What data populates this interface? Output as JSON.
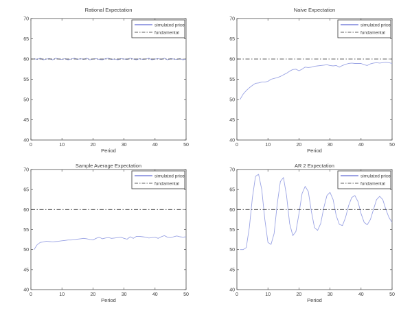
{
  "figure": {
    "background": "#ffffff",
    "axis_color": "#4a4a4a",
    "text_color": "#3d3d3d",
    "curve_color": "#9aa3e4",
    "legend_curve_color": "#3a45c8",
    "fundamental_color": "#2b2b2b"
  },
  "chart_data": [
    {
      "type": "line",
      "title": "Rational Expectation",
      "xlabel": "Period",
      "ylabel": "",
      "xlim": [
        0,
        50
      ],
      "ylim": [
        40,
        70
      ],
      "xticks": [
        0,
        10,
        20,
        30,
        40,
        50
      ],
      "yticks": [
        40,
        45,
        50,
        55,
        60,
        65,
        70
      ],
      "grid": false,
      "legend": [
        "simulated price",
        "fundamental"
      ],
      "legend_position": "upper right",
      "series": [
        {
          "name": "simulated price",
          "style": "solid",
          "x": [
            1,
            2,
            3,
            4,
            5,
            6,
            7,
            8,
            9,
            10,
            11,
            12,
            13,
            14,
            15,
            16,
            17,
            18,
            19,
            20,
            21,
            22,
            23,
            24,
            25,
            26,
            27,
            28,
            29,
            30,
            31,
            32,
            33,
            34,
            35,
            36,
            37,
            38,
            39,
            40,
            41,
            42,
            43,
            44,
            45,
            46,
            47,
            48,
            49,
            50
          ],
          "y": [
            60.1,
            59.9,
            60.2,
            59.8,
            60.0,
            60.1,
            59.8,
            60.2,
            60.0,
            59.9,
            60.1,
            59.8,
            60.0,
            60.2,
            59.9,
            60.1,
            59.9,
            60.2,
            59.8,
            60.0,
            60.1,
            59.9,
            59.8,
            60.1,
            60.2,
            59.9,
            60.0,
            59.8,
            60.1,
            60.0,
            59.9,
            60.2,
            60.0,
            59.8,
            60.1,
            59.9,
            60.0,
            60.2,
            59.8,
            60.0,
            60.1,
            59.9,
            60.2,
            59.8,
            60.1,
            60.0,
            59.9,
            60.1,
            59.8,
            60.0
          ]
        },
        {
          "name": "fundamental",
          "style": "dashdot",
          "constant": 60
        }
      ]
    },
    {
      "type": "line",
      "title": "Naive Expectation",
      "xlabel": "Period",
      "ylabel": "",
      "xlim": [
        0,
        50
      ],
      "ylim": [
        40,
        70
      ],
      "xticks": [
        0,
        10,
        20,
        30,
        40,
        50
      ],
      "yticks": [
        40,
        45,
        50,
        55,
        60,
        65,
        70
      ],
      "grid": false,
      "legend": [
        "simulated price",
        "fundamental"
      ],
      "legend_position": "upper right",
      "series": [
        {
          "name": "simulated price",
          "style": "solid",
          "x": [
            1,
            2,
            3,
            4,
            5,
            6,
            7,
            8,
            9,
            10,
            11,
            12,
            13,
            14,
            15,
            16,
            17,
            18,
            19,
            20,
            21,
            22,
            23,
            24,
            25,
            26,
            27,
            28,
            29,
            30,
            31,
            32,
            33,
            34,
            35,
            36,
            37,
            38,
            39,
            40,
            41,
            42,
            43,
            44,
            45,
            46,
            47,
            48,
            49,
            50
          ],
          "y": [
            50.0,
            51.3,
            52.2,
            52.9,
            53.5,
            54.0,
            54.1,
            54.3,
            54.3,
            54.5,
            55.0,
            55.2,
            55.4,
            55.7,
            56.1,
            56.5,
            57.0,
            57.4,
            57.5,
            57.1,
            57.5,
            58.0,
            57.9,
            58.0,
            58.2,
            58.3,
            58.4,
            58.5,
            58.6,
            58.4,
            58.3,
            58.4,
            58.0,
            58.4,
            58.7,
            58.9,
            59.0,
            58.9,
            58.9,
            58.9,
            58.6,
            58.4,
            58.8,
            59.0,
            59.1,
            59.0,
            59.1,
            59.2,
            59.1,
            58.9
          ]
        },
        {
          "name": "fundamental",
          "style": "dashdot",
          "constant": 60
        }
      ]
    },
    {
      "type": "line",
      "title": "Sample Average Expectation",
      "xlabel": "Period",
      "ylabel": "",
      "xlim": [
        0,
        50
      ],
      "ylim": [
        40,
        70
      ],
      "xticks": [
        0,
        10,
        20,
        30,
        40,
        50
      ],
      "yticks": [
        40,
        45,
        50,
        55,
        60,
        65,
        70
      ],
      "grid": false,
      "legend": [
        "simulated price",
        "fundamental"
      ],
      "legend_position": "upper right",
      "series": [
        {
          "name": "simulated price",
          "style": "solid",
          "x": [
            1,
            2,
            3,
            4,
            5,
            6,
            7,
            8,
            9,
            10,
            11,
            12,
            13,
            14,
            15,
            16,
            17,
            18,
            19,
            20,
            21,
            22,
            23,
            24,
            25,
            26,
            27,
            28,
            29,
            30,
            31,
            32,
            33,
            34,
            35,
            36,
            37,
            38,
            39,
            40,
            41,
            42,
            43,
            44,
            45,
            46,
            47,
            48,
            49,
            50
          ],
          "y": [
            50.0,
            51.2,
            51.8,
            51.9,
            52.1,
            52.0,
            51.9,
            52.0,
            52.1,
            52.2,
            52.3,
            52.4,
            52.4,
            52.5,
            52.6,
            52.7,
            52.8,
            52.7,
            52.5,
            52.4,
            52.8,
            53.1,
            52.7,
            52.9,
            53.0,
            52.8,
            52.9,
            53.0,
            53.1,
            52.8,
            52.6,
            53.2,
            52.8,
            53.3,
            53.3,
            53.2,
            53.1,
            52.9,
            53.0,
            53.1,
            52.8,
            53.2,
            53.5,
            53.1,
            53.0,
            53.2,
            53.4,
            53.2,
            53.1,
            53.2
          ]
        },
        {
          "name": "fundamental",
          "style": "dashdot",
          "constant": 60
        }
      ]
    },
    {
      "type": "line",
      "title": "AR 2 Expectation",
      "xlabel": "Period",
      "ylabel": "",
      "xlim": [
        0,
        50
      ],
      "ylim": [
        40,
        70
      ],
      "xticks": [
        0,
        10,
        20,
        30,
        40,
        50
      ],
      "yticks": [
        40,
        45,
        50,
        55,
        60,
        65,
        70
      ],
      "grid": false,
      "legend": [
        "simulated price",
        "fundamental"
      ],
      "legend_position": "upper right",
      "series": [
        {
          "name": "simulated price",
          "style": "solid",
          "x": [
            1,
            2,
            3,
            4,
            5,
            6,
            7,
            8,
            9,
            10,
            11,
            12,
            13,
            14,
            15,
            16,
            17,
            18,
            19,
            20,
            21,
            22,
            23,
            24,
            25,
            26,
            27,
            28,
            29,
            30,
            31,
            32,
            33,
            34,
            35,
            36,
            37,
            38,
            39,
            40,
            41,
            42,
            43,
            44,
            45,
            46,
            47,
            48,
            49,
            50
          ],
          "y": [
            50.0,
            50.0,
            50.5,
            55.5,
            63.0,
            68.3,
            68.8,
            65.0,
            57.5,
            51.8,
            51.3,
            54.0,
            61.5,
            67.0,
            68.0,
            63.5,
            56.5,
            53.5,
            54.5,
            59.0,
            64.0,
            65.8,
            64.5,
            59.5,
            55.5,
            54.8,
            56.5,
            60.5,
            63.5,
            64.3,
            62.5,
            58.5,
            56.3,
            56.0,
            58.0,
            61.0,
            63.0,
            63.5,
            62.0,
            59.0,
            56.8,
            56.2,
            57.5,
            60.0,
            62.5,
            63.3,
            62.5,
            60.0,
            58.0,
            56.8
          ]
        },
        {
          "name": "fundamental",
          "style": "dashdot",
          "constant": 60
        }
      ]
    }
  ]
}
